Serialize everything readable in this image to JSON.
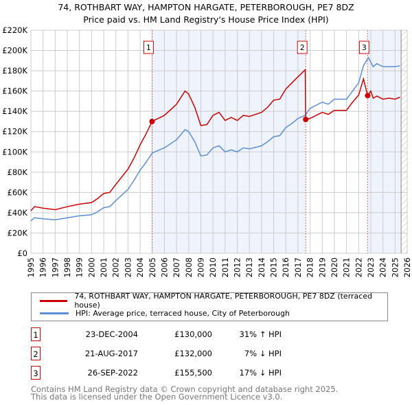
{
  "header": {
    "title": "74, ROTHBART WAY, HAMPTON HARGATE, PETERBOROUGH, PE7 8DZ",
    "subtitle": "Price paid vs. HM Land Registry's House Price Index (HPI)"
  },
  "chart_data": {
    "type": "line",
    "title": "74, ROTHBART WAY, HAMPTON HARGATE, PETERBOROUGH, PE7 8DZ",
    "subtitle": "Price paid vs. HM Land Registry's House Price Index (HPI)",
    "xlim": [
      1995,
      2026
    ],
    "ylim": [
      0,
      220000
    ],
    "x_ticks": [
      "1995",
      "1996",
      "1997",
      "1998",
      "1999",
      "2000",
      "2001",
      "2002",
      "2003",
      "2004",
      "2005",
      "2006",
      "2007",
      "2008",
      "2009",
      "2010",
      "2011",
      "2012",
      "2013",
      "2014",
      "2015",
      "2016",
      "2017",
      "2018",
      "2019",
      "2020",
      "2021",
      "2022",
      "2023",
      "2024",
      "2025",
      "2026"
    ],
    "y_ticks": [
      {
        "v": 0,
        "label": "£0"
      },
      {
        "v": 20000,
        "label": "£20K"
      },
      {
        "v": 40000,
        "label": "£40K"
      },
      {
        "v": 60000,
        "label": "£60K"
      },
      {
        "v": 80000,
        "label": "£80K"
      },
      {
        "v": 100000,
        "label": "£100K"
      },
      {
        "v": 120000,
        "label": "£120K"
      },
      {
        "v": 140000,
        "label": "£140K"
      },
      {
        "v": 160000,
        "label": "£160K"
      },
      {
        "v": 180000,
        "label": "£180K"
      },
      {
        "v": 200000,
        "label": "£200K"
      },
      {
        "v": 220000,
        "label": "£220K"
      }
    ],
    "grid": true,
    "series": [
      {
        "name": "74, ROTHBART WAY, HAMPTON HARGATE, PETERBOROUGH, PE7 8DZ (terraced house)",
        "color": "#cc0000",
        "x": [
          1995,
          1995.3,
          1996,
          1997,
          1998,
          1999,
          2000,
          2000.5,
          2001,
          2001.5,
          2002,
          2003,
          2003.5,
          2004,
          2004.5,
          2004.98,
          2006,
          2007,
          2007.7,
          2008,
          2008.5,
          2009,
          2009.5,
          2010,
          2010.5,
          2011,
          2011.5,
          2012,
          2012.5,
          2013,
          2014,
          2014.5,
          2015,
          2015.5,
          2016,
          2016.5,
          2017,
          2017.6,
          2017.64,
          2018,
          2019,
          2019.5,
          2020,
          2021,
          2021.5,
          2022,
          2022.4,
          2022.74,
          2023,
          2023.2,
          2023.5,
          2024,
          2024.5,
          2025,
          2025.4
        ],
        "y": [
          42000,
          46000,
          44500,
          43000,
          46000,
          48500,
          50000,
          54000,
          59000,
          60000,
          68000,
          83000,
          94000,
          107000,
          118000,
          130000,
          136000,
          147000,
          160000,
          157000,
          144000,
          126000,
          127000,
          136000,
          139000,
          131000,
          134000,
          131000,
          136000,
          135000,
          139000,
          144000,
          151000,
          152000,
          162000,
          168000,
          174000,
          181000,
          132000,
          133000,
          139000,
          137000,
          141000,
          141000,
          149000,
          156000,
          172000,
          155500,
          160000,
          153000,
          155000,
          152000,
          153000,
          152000,
          154000
        ]
      },
      {
        "name": "HPI: Average price, terraced house, City of Peterborough",
        "color": "#5b8fd6",
        "x": [
          1995,
          1995.3,
          1996,
          1997,
          1998,
          1999,
          2000,
          2000.5,
          2001,
          2001.5,
          2002,
          2003,
          2003.5,
          2004,
          2004.5,
          2005,
          2006,
          2007,
          2007.7,
          2008,
          2008.5,
          2009,
          2009.5,
          2010,
          2010.5,
          2011,
          2011.5,
          2012,
          2012.5,
          2013,
          2014,
          2014.5,
          2015,
          2015.5,
          2016,
          2016.5,
          2017,
          2017.6,
          2018,
          2019,
          2019.5,
          2020,
          2021,
          2021.5,
          2022,
          2022.4,
          2022.8,
          2023.2,
          2023.5,
          2024,
          2024.5,
          2025,
          2025.4
        ],
        "y": [
          32000,
          35000,
          34000,
          33000,
          35000,
          37000,
          38000,
          41000,
          45000,
          46000,
          52000,
          63000,
          72000,
          82000,
          90000,
          99000,
          104000,
          112000,
          122000,
          120000,
          110000,
          96000,
          97000,
          104000,
          106000,
          100000,
          102000,
          100000,
          104000,
          103000,
          106000,
          110000,
          115000,
          116000,
          124000,
          128000,
          133000,
          136000,
          143000,
          149000,
          147000,
          152000,
          152000,
          160000,
          168000,
          185000,
          193000,
          184000,
          187000,
          184000,
          184000,
          184000,
          185000
        ]
      }
    ],
    "sales": [
      {
        "label": "1",
        "x": 2004.98,
        "y": 130000,
        "date": "23-DEC-2004",
        "price": "£130,000",
        "hpi": "31% ↑ HPI"
      },
      {
        "label": "2",
        "x": 2017.64,
        "y": 132000,
        "date": "21-AUG-2017",
        "price": "£132,000",
        "hpi": "7% ↓ HPI"
      },
      {
        "label": "3",
        "x": 2022.74,
        "y": 155500,
        "date": "26-SEP-2022",
        "price": "£155,500",
        "hpi": "17% ↓ HPI"
      }
    ],
    "shaded_ranges": [
      [
        2004.98,
        2017.64
      ],
      [
        2022.74,
        2025.5
      ]
    ],
    "hatched_from": 2025.5
  },
  "legend": {
    "property": "74, ROTHBART WAY, HAMPTON HARGATE, PETERBOROUGH, PE7 8DZ (terraced house)",
    "hpi": "HPI: Average price, terraced house, City of Peterborough"
  },
  "footer": {
    "line1": "Contains HM Land Registry data © Crown copyright and database right 2025.",
    "line2": "This data is licensed under the Open Government Licence v3.0."
  }
}
